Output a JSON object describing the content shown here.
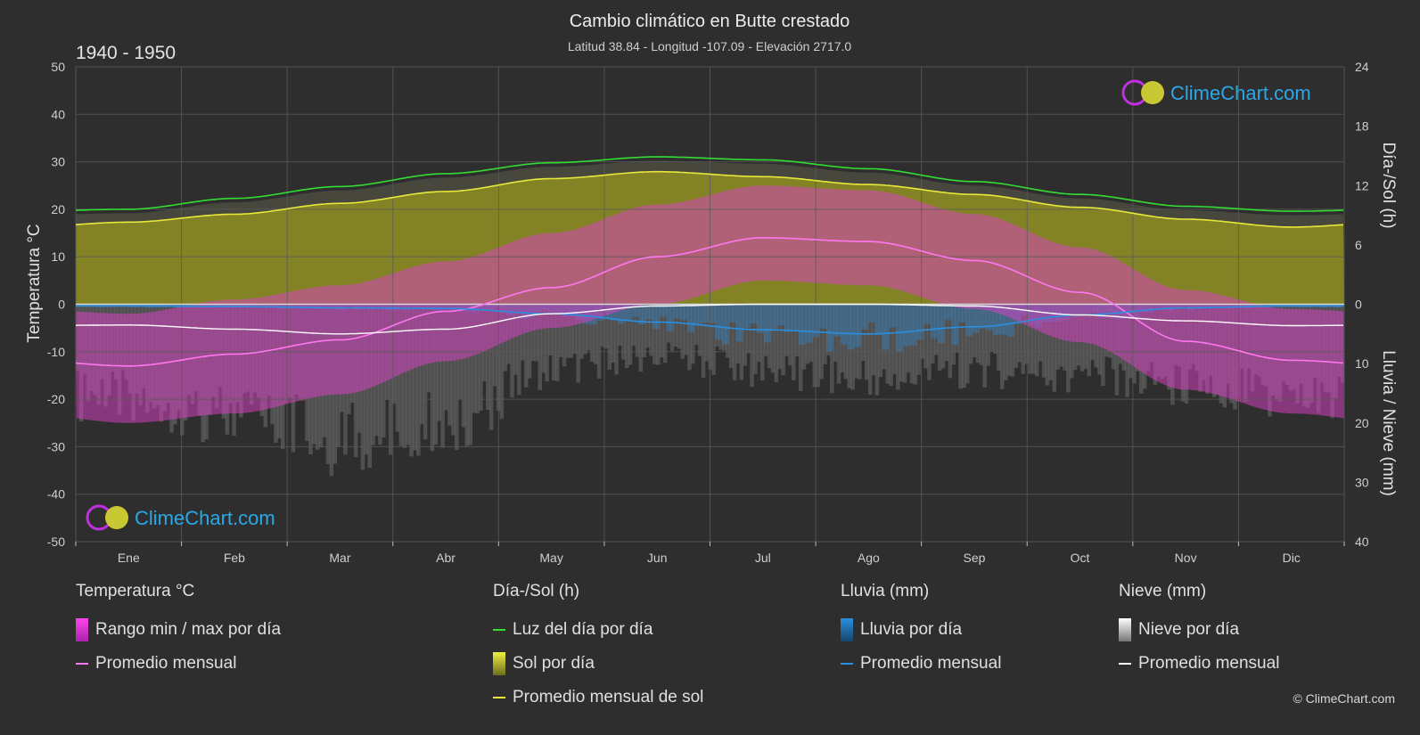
{
  "header": {
    "title": "Cambio climático en Butte crestado",
    "subtitle": "Latitud 38.84 - Longitud -107.09 - Elevación 2717.0",
    "period": "1940 - 1950"
  },
  "logo": {
    "text": "ClimeChart.com"
  },
  "copyright": "© ClimeChart.com",
  "colors": {
    "background": "#2e2e2e",
    "daylight": "#33dd33",
    "sunshine": "#e8e83a",
    "sunshine_fill": "#8e8e22",
    "temp_range": "#e040c8",
    "temp_avg": "#ff77ee",
    "rain": "#2a8fe0",
    "snow": "#ffffff",
    "grid": "#5a5a5a"
  },
  "chart_data": {
    "type": "line",
    "months": [
      "Ene",
      "Feb",
      "Mar",
      "Abr",
      "May",
      "Jun",
      "Jul",
      "Ago",
      "Sep",
      "Oct",
      "Nov",
      "Dic"
    ],
    "left_axis": {
      "label": "Temperatura °C",
      "min": -50,
      "max": 50,
      "ticks": [
        50,
        40,
        30,
        20,
        10,
        0,
        -10,
        -20,
        -30,
        -40,
        -50
      ]
    },
    "right_axis_top": {
      "label": "Día-/Sol (h)",
      "min": 0,
      "max": 24,
      "ticks": [
        24,
        18,
        12,
        6,
        0
      ]
    },
    "right_axis_bottom": {
      "label": "Lluvia / Nieve (mm)",
      "min": 0,
      "max": 40,
      "ticks": [
        0,
        10,
        20,
        30,
        40
      ]
    },
    "series": [
      {
        "name": "Luz del día por día",
        "axis": "hours",
        "values": [
          9.6,
          10.7,
          11.9,
          13.2,
          14.3,
          14.9,
          14.6,
          13.7,
          12.4,
          11.1,
          9.9,
          9.4
        ]
      },
      {
        "name": "Promedio mensual de sol",
        "axis": "hours",
        "values": [
          8.3,
          9.1,
          10.2,
          11.4,
          12.7,
          13.4,
          12.9,
          12.1,
          11.1,
          9.8,
          8.6,
          7.8
        ]
      },
      {
        "name": "Promedio mensual",
        "kind": "temperature_avg",
        "axis": "temperature",
        "values": [
          -13,
          -10.5,
          -7.5,
          -1.5,
          3.5,
          10,
          14,
          13.2,
          9.2,
          2.5,
          -7.8,
          -11.8
        ]
      },
      {
        "name": "Promedio mensual",
        "kind": "rain_avg",
        "axis": "precip_mm",
        "values": [
          0.3,
          0.4,
          0.6,
          0.7,
          1.6,
          3.0,
          4.3,
          5.0,
          3.8,
          1.8,
          0.6,
          0.3
        ]
      },
      {
        "name": "Promedio mensual",
        "kind": "snow_avg",
        "axis": "precip_mm",
        "values": [
          3.5,
          4.2,
          5.0,
          4.2,
          1.6,
          0.3,
          0,
          0,
          0.3,
          1.8,
          2.8,
          3.6
        ]
      }
    ],
    "temp_range": {
      "min": [
        -25,
        -23,
        -19,
        -12,
        -5,
        0,
        5,
        4,
        -1,
        -8,
        -18,
        -23
      ],
      "max": [
        -2,
        1,
        4,
        9,
        15,
        21,
        25,
        24,
        19,
        12,
        3,
        -1
      ]
    }
  },
  "legend": {
    "temperature": {
      "header": "Temperatura °C",
      "items": [
        "Rango min / max por día",
        "Promedio mensual"
      ]
    },
    "daysun": {
      "header": "Día-/Sol (h)",
      "items": [
        "Luz del día por día",
        "Sol por día",
        "Promedio mensual de sol"
      ]
    },
    "rain": {
      "header": "Lluvia (mm)",
      "items": [
        "Lluvia por día",
        "Promedio mensual"
      ]
    },
    "snow": {
      "header": "Nieve (mm)",
      "items": [
        "Nieve por día",
        "Promedio mensual"
      ]
    }
  }
}
